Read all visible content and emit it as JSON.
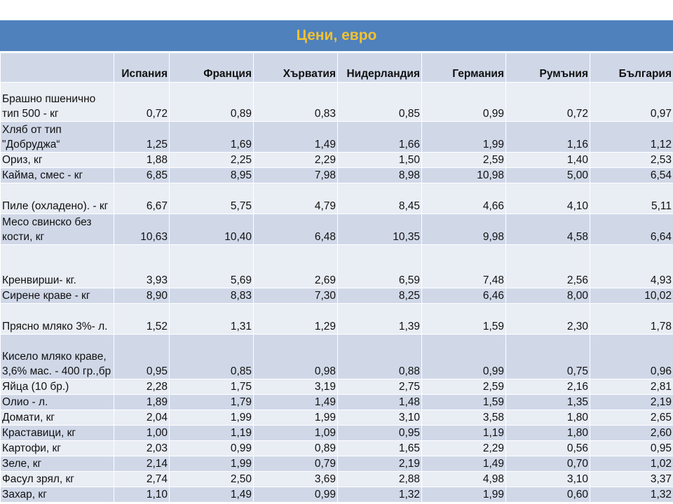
{
  "title": "Цени, евро",
  "title_color": "#f2c232",
  "header_bg": "#4f81bd",
  "row_colors": [
    "#e9edf4",
    "#d0d8e8"
  ],
  "columns": [
    "",
    "Испания",
    "Франция",
    "Хърватия",
    "Нидерландия",
    "Германия",
    "Румъния",
    "България"
  ],
  "rows": [
    {
      "name": "Брашно пшенично тип 500 - кг",
      "values": [
        "0,72",
        "0,89",
        "0,83",
        "0,85",
        "0,99",
        "0,72",
        "0,97"
      ]
    },
    {
      "name": "Хляб  от тип \"Добруджа“",
      "values": [
        "1,25",
        "1,69",
        "1,49",
        "1,66",
        "1,99",
        "1,16",
        "1,12"
      ]
    },
    {
      "name": "Ориз, кг",
      "values": [
        "1,88",
        "2,25",
        "2,29",
        "1,50",
        "2,59",
        "1,40",
        "2,53"
      ]
    },
    {
      "name": "Кайма, смес - кг",
      "values": [
        "6,85",
        "8,95",
        "7,98",
        "8,98",
        "10,98",
        "5,00",
        "6,54"
      ]
    },
    {
      "name": "Пиле (охладено). - кг",
      "values": [
        "6,67",
        "5,75",
        "4,79",
        "8,45",
        "4,66",
        "4,10",
        "5,11"
      ]
    },
    {
      "name": "Месо свинско без кости,  кг",
      "values": [
        "10,63",
        "10,40",
        "6,48",
        "10,35",
        "9,98",
        "4,58",
        "6,64"
      ]
    },
    {
      "name": "Кренвирши- кг.",
      "values": [
        "3,93",
        "5,69",
        "2,69",
        "6,59",
        "7,48",
        "2,56",
        "4,93"
      ]
    },
    {
      "name": "Сирене краве - кг",
      "values": [
        "8,90",
        "8,83",
        "7,30",
        "8,25",
        "6,46",
        "8,00",
        "10,02"
      ]
    },
    {
      "name": "Прясно мляко 3%- л.",
      "values": [
        "1,52",
        "1,31",
        "1,29",
        "1,39",
        "1,59",
        "2,30",
        "1,78"
      ]
    },
    {
      "name": "Кисело мляко краве, 3,6% мас. - 400 гр.,бр",
      "values": [
        "0,95",
        "0,85",
        "0,98",
        "0,88",
        "0,99",
        "0,75",
        "0,96"
      ]
    },
    {
      "name": "Яйца (10 бр.)",
      "values": [
        "2,28",
        "1,75",
        "3,19",
        "2,75",
        "2,59",
        "2,16",
        "2,81"
      ]
    },
    {
      "name": "Олио - л.",
      "values": [
        "1,89",
        "1,79",
        "1,49",
        "1,48",
        "1,59",
        "1,35",
        "2,19"
      ]
    },
    {
      "name": "Домати, кг",
      "values": [
        "2,04",
        "1,99",
        "1,99",
        "3,10",
        "3,58",
        "1,80",
        "2,65"
      ]
    },
    {
      "name": "Краставици, кг",
      "values": [
        "1,00",
        "1,19",
        "1,09",
        "0,95",
        "1,19",
        "1,80",
        "2,60"
      ]
    },
    {
      "name": "Картофи, кг",
      "values": [
        "2,03",
        "0,99",
        "0,89",
        "1,65",
        "2,29",
        "0,56",
        "0,95"
      ]
    },
    {
      "name": "Зеле, кг",
      "values": [
        "2,14",
        "1,99",
        "0,79",
        "2,19",
        "1,49",
        "0,70",
        "1,02"
      ]
    },
    {
      "name": "Фасул зрял, кг",
      "values": [
        "2,74",
        "2,50",
        "3,69",
        "2,88",
        "4,98",
        "3,10",
        "3,37"
      ]
    },
    {
      "name": "Захар, кг",
      "values": [
        "1,10",
        "1,49",
        "0,99",
        "1,32",
        "1,99",
        "0,60",
        "1,32"
      ]
    }
  ]
}
